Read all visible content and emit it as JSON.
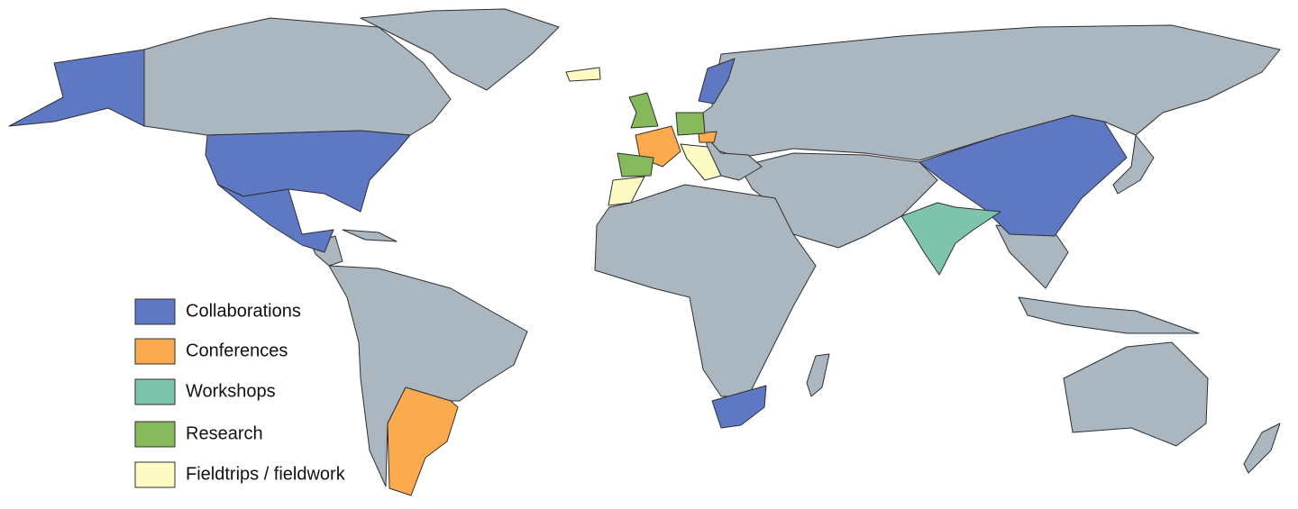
{
  "legend": {
    "items": [
      {
        "label": "Collaborations",
        "color": "#5f78c4"
      },
      {
        "label": "Conferences",
        "color": "#fbaa4e"
      },
      {
        "label": "Workshops",
        "color": "#7ec3ac"
      },
      {
        "label": "Research",
        "color": "#86b85c"
      },
      {
        "label": "Fieldtrips / fieldwork",
        "color": "#fdfbc4"
      }
    ]
  }
}
